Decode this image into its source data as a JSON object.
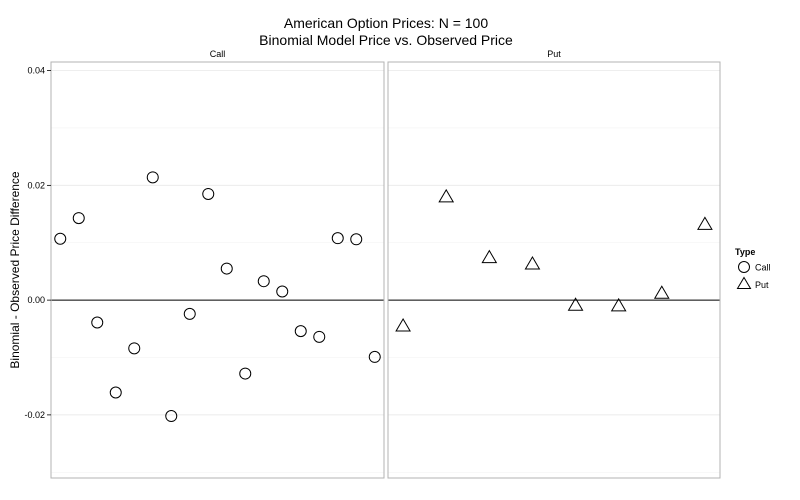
{
  "chart_data": {
    "type": "scatter",
    "title_line1": "American Option Prices: N = 100",
    "title_line2": "Binomial Model Price vs. Observed Price",
    "ylabel": "Binomial - Observed Price Difference",
    "ylim": [
      -0.031,
      0.0415
    ],
    "yticks": [
      -0.02,
      0.0,
      0.02,
      0.04
    ],
    "ytick_labels": [
      "-0.02",
      "0.00",
      "0.02",
      "0.04"
    ],
    "reference_line_y": 0.0,
    "legend": {
      "title": "Type",
      "placement": "right",
      "entries": [
        {
          "label": "Call",
          "shape": "circle"
        },
        {
          "label": "Put",
          "shape": "triangle"
        }
      ]
    },
    "panels": [
      {
        "label": "Call",
        "shape": "circle",
        "xlim": [
          0.5,
          18.5
        ],
        "values": [
          0.0107,
          0.0143,
          -0.0039,
          -0.0161,
          -0.0084,
          0.0214,
          -0.0202,
          -0.0024,
          0.0185,
          0.0055,
          -0.0128,
          0.0033,
          0.0015,
          -0.0054,
          -0.0064,
          0.0108,
          0.0106,
          -0.0099
        ]
      },
      {
        "label": "Put",
        "shape": "triangle",
        "xlim": [
          0.65,
          8.35
        ],
        "values": [
          -0.0045,
          0.018,
          0.0074,
          0.0063,
          -0.0009,
          -0.001,
          0.0012,
          0.0132
        ]
      }
    ]
  }
}
